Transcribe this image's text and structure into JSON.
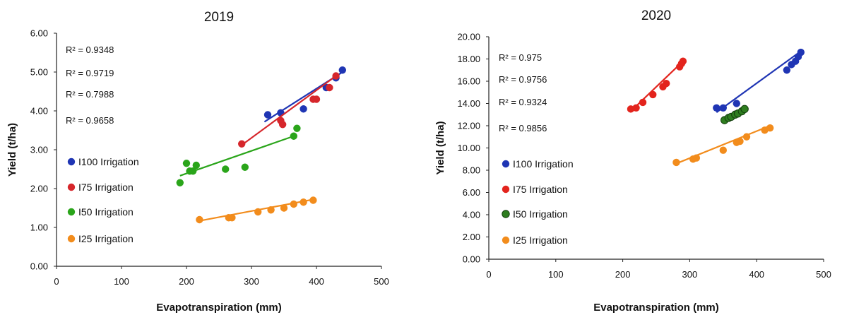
{
  "chart_data": [
    {
      "type": "scatter",
      "title": "2019",
      "xlabel": "Evapotranspiration (mm)",
      "ylabel": "Yield (t/ha)",
      "xlim": [
        0,
        500
      ],
      "ylim": [
        0,
        6
      ],
      "x_ticks": [
        "0",
        "100",
        "200",
        "300",
        "400",
        "500"
      ],
      "y_ticks": [
        "0.00",
        "1.00",
        "2.00",
        "3.00",
        "4.00",
        "5.00",
        "6.00"
      ],
      "r2_labels": [
        "R² = 0.9348",
        "R² = 0.9719",
        "R² = 0.7988",
        "R² = 0.9658"
      ],
      "legend_position": "left",
      "series": [
        {
          "name": "I100 Irrigation",
          "color": "#1f35b4",
          "x": [
            325,
            345,
            380,
            415,
            430,
            440
          ],
          "y": [
            3.9,
            3.95,
            4.05,
            4.6,
            4.85,
            5.05
          ],
          "trend": [
            [
              320,
              3.72
            ],
            [
              442,
              5.02
            ]
          ]
        },
        {
          "name": "I75 Irrigation",
          "color": "#d6262b",
          "x": [
            285,
            345,
            348,
            395,
            400,
            420,
            430
          ],
          "y": [
            3.15,
            3.75,
            3.65,
            4.3,
            4.3,
            4.6,
            4.9
          ],
          "trend": [
            [
              285,
              3.12
            ],
            [
              430,
              4.9
            ]
          ]
        },
        {
          "name": "I50 Irrigation",
          "color": "#2aa51a",
          "x": [
            190,
            200,
            205,
            210,
            215,
            260,
            290,
            365,
            370
          ],
          "y": [
            2.15,
            2.65,
            2.45,
            2.45,
            2.6,
            2.5,
            2.55,
            3.35,
            3.55
          ],
          "trend": [
            [
              190,
              2.33
            ],
            [
              365,
              3.35
            ]
          ]
        },
        {
          "name": "I25 Irrigation",
          "color": "#f28c1c",
          "x": [
            220,
            265,
            270,
            310,
            330,
            350,
            365,
            380,
            395
          ],
          "y": [
            1.2,
            1.25,
            1.25,
            1.4,
            1.45,
            1.5,
            1.6,
            1.65,
            1.7
          ],
          "trend": [
            [
              220,
              1.17
            ],
            [
              395,
              1.72
            ]
          ]
        }
      ]
    },
    {
      "type": "scatter",
      "title": "2020",
      "xlabel": "Evapotranspiration (mm)",
      "ylabel": "Yield (t/ha)",
      "xlim": [
        0,
        500
      ],
      "ylim": [
        0,
        20
      ],
      "x_ticks": [
        "0",
        "100",
        "200",
        "300",
        "400",
        "500"
      ],
      "y_ticks": [
        "0.00",
        "2.00",
        "4.00",
        "6.00",
        "8.00",
        "10.00",
        "12.00",
        "14.00",
        "16.00",
        "18.00",
        "20.00"
      ],
      "r2_labels": [
        "R² = 0.975",
        "R² = 0.9756",
        "R² = 0.9324",
        "R² = 0.9856"
      ],
      "legend_position": "left",
      "series": [
        {
          "name": "I100 Irrigation",
          "color": "#1f35b4",
          "x": [
            340,
            350,
            370,
            445,
            452,
            458,
            462,
            466
          ],
          "y": [
            13.6,
            13.6,
            14.0,
            17.0,
            17.5,
            17.8,
            18.2,
            18.6
          ],
          "trend": [
            [
              340,
              13.2
            ],
            [
              466,
              18.7
            ]
          ]
        },
        {
          "name": "I75 Irrigation",
          "color": "#e3241d",
          "x": [
            212,
            220,
            230,
            245,
            260,
            265,
            285,
            288,
            290
          ],
          "y": [
            13.5,
            13.6,
            14.1,
            14.8,
            15.5,
            15.8,
            17.3,
            17.6,
            17.8
          ],
          "trend": [
            [
              212,
              13.3
            ],
            [
              290,
              17.8
            ]
          ]
        },
        {
          "name": "I50 Irrigation",
          "color": "#2e7d1f",
          "x": [
            352,
            358,
            362,
            368,
            372,
            378,
            382
          ],
          "y": [
            12.5,
            12.7,
            12.8,
            13.0,
            13.1,
            13.3,
            13.5
          ],
          "trend": [
            [
              352,
              12.4
            ],
            [
              382,
              13.6
            ]
          ]
        },
        {
          "name": "I25 Irrigation",
          "color": "#f28c1c",
          "x": [
            280,
            305,
            310,
            350,
            370,
            375,
            385,
            412,
            420
          ],
          "y": [
            8.7,
            9.0,
            9.1,
            9.8,
            10.5,
            10.6,
            11.0,
            11.6,
            11.8
          ],
          "trend": [
            [
              280,
              8.6
            ],
            [
              420,
              12.0
            ]
          ]
        }
      ]
    }
  ]
}
